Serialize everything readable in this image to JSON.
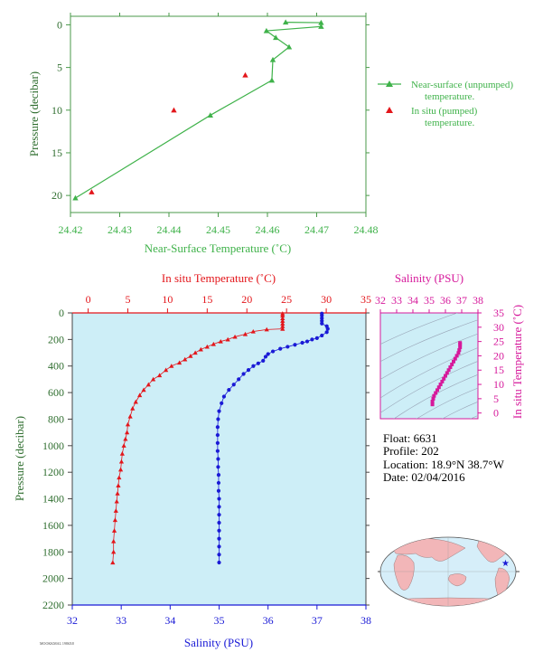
{
  "colors": {
    "green": "#3fb24a",
    "red": "#e3161b",
    "blue": "#1a1ad6",
    "magenta": "#d6199b",
    "panel_bg": "#cdeef7",
    "dark_green_axis": "#2f6e2f"
  },
  "footer_code": "MOOKKMAL 1986X8",
  "info": {
    "float": "Float:  6631",
    "profile": "Profile:  202",
    "location": "Location:  18.9°N  38.7°W",
    "date": "Date:  02/04/2016"
  },
  "chart_data": [
    {
      "type": "line",
      "id": "near_surface",
      "xlabel": "Near-Surface Temperature (˚C)",
      "ylabel": "Pressure (decibar)",
      "xlim": [
        24.42,
        24.48
      ],
      "ylim": [
        22,
        -1
      ],
      "xticks": [
        "24.42",
        "24.43",
        "24.44",
        "24.45",
        "24.46",
        "24.47",
        "24.48"
      ],
      "yticks": [
        "0",
        "5",
        "10",
        "15",
        "20"
      ],
      "legend": [
        {
          "line1": "Near-surface (unpumped)",
          "line2": "temperature."
        },
        {
          "line1": "In situ (pumped)",
          "line2": "temperature."
        }
      ],
      "series": [
        {
          "name": "Near-surface (unpumped) temperature.",
          "points": [
            [
              24.4637,
              -0.3
            ],
            [
              24.4709,
              -0.25
            ],
            [
              24.4709,
              0.2
            ],
            [
              24.4598,
              0.7
            ],
            [
              24.4617,
              1.5
            ],
            [
              24.4644,
              2.6
            ],
            [
              24.4611,
              4.1
            ],
            [
              24.4609,
              6.5
            ],
            [
              24.4484,
              10.6
            ],
            [
              24.421,
              20.3
            ]
          ]
        },
        {
          "name": "In situ (pumped) temperature.",
          "points": [
            [
              24.4555,
              5.9
            ],
            [
              24.441,
              10.0
            ],
            [
              24.4243,
              19.6
            ]
          ]
        }
      ]
    },
    {
      "type": "scatter",
      "id": "profile",
      "ylabel": "Pressure (decibar)",
      "x_top_label": "In situ Temperature (˚C)",
      "x_bottom_label": "Salinity (PSU)",
      "temp_lim": [
        -2,
        35
      ],
      "sal_lim": [
        32,
        38
      ],
      "ylim": [
        2200,
        0
      ],
      "temp_ticks": [
        "0",
        "5",
        "10",
        "15",
        "20",
        "25",
        "30",
        "35"
      ],
      "sal_ticks": [
        "32",
        "33",
        "34",
        "35",
        "36",
        "37",
        "38"
      ],
      "yticks": [
        "0",
        "200",
        "400",
        "600",
        "800",
        "1000",
        "1200",
        "1400",
        "1600",
        "1800",
        "2000",
        "2200"
      ],
      "temperature": [
        [
          24.5,
          5
        ],
        [
          24.5,
          20
        ],
        [
          24.5,
          40
        ],
        [
          24.5,
          60
        ],
        [
          24.5,
          80
        ],
        [
          24.5,
          100
        ],
        [
          24.5,
          120
        ],
        [
          22.5,
          125
        ],
        [
          20.8,
          140
        ],
        [
          19.8,
          160
        ],
        [
          18.5,
          180
        ],
        [
          17.6,
          200
        ],
        [
          16.7,
          215
        ],
        [
          15.8,
          235
        ],
        [
          15.0,
          255
        ],
        [
          14.2,
          275
        ],
        [
          13.5,
          300
        ],
        [
          12.9,
          325
        ],
        [
          12.2,
          350
        ],
        [
          11.5,
          375
        ],
        [
          10.5,
          400
        ],
        [
          9.8,
          430
        ],
        [
          9.0,
          470
        ],
        [
          8.2,
          500
        ],
        [
          7.6,
          540
        ],
        [
          7.0,
          580
        ],
        [
          6.5,
          620
        ],
        [
          6.0,
          670
        ],
        [
          5.6,
          720
        ],
        [
          5.3,
          780
        ],
        [
          5.0,
          840
        ],
        [
          4.9,
          900
        ],
        [
          4.7,
          950
        ],
        [
          4.5,
          1000
        ],
        [
          4.3,
          1060
        ],
        [
          4.2,
          1120
        ],
        [
          4.1,
          1180
        ],
        [
          3.9,
          1240
        ],
        [
          3.8,
          1300
        ],
        [
          3.7,
          1360
        ],
        [
          3.6,
          1420
        ],
        [
          3.5,
          1490
        ],
        [
          3.4,
          1560
        ],
        [
          3.3,
          1640
        ],
        [
          3.2,
          1720
        ],
        [
          3.2,
          1800
        ],
        [
          3.1,
          1880
        ]
      ],
      "salinity": [
        [
          37.1,
          5
        ],
        [
          37.1,
          20
        ],
        [
          37.1,
          40
        ],
        [
          37.1,
          60
        ],
        [
          37.1,
          80
        ],
        [
          37.2,
          100
        ],
        [
          37.22,
          120
        ],
        [
          37.2,
          145
        ],
        [
          37.1,
          170
        ],
        [
          37.0,
          190
        ],
        [
          36.9,
          200
        ],
        [
          36.8,
          215
        ],
        [
          36.7,
          225
        ],
        [
          36.55,
          240
        ],
        [
          36.4,
          255
        ],
        [
          36.25,
          270
        ],
        [
          36.1,
          290
        ],
        [
          36.0,
          310
        ],
        [
          35.95,
          330
        ],
        [
          35.9,
          360
        ],
        [
          35.8,
          380
        ],
        [
          35.7,
          400
        ],
        [
          35.6,
          430
        ],
        [
          35.5,
          460
        ],
        [
          35.4,
          500
        ],
        [
          35.3,
          540
        ],
        [
          35.2,
          580
        ],
        [
          35.1,
          630
        ],
        [
          35.05,
          680
        ],
        [
          35.0,
          740
        ],
        [
          34.98,
          800
        ],
        [
          34.97,
          860
        ],
        [
          34.97,
          920
        ],
        [
          34.97,
          980
        ],
        [
          34.97,
          1040
        ],
        [
          34.98,
          1100
        ],
        [
          34.98,
          1160
        ],
        [
          34.99,
          1220
        ],
        [
          34.99,
          1280
        ],
        [
          34.99,
          1340
        ],
        [
          35.0,
          1400
        ],
        [
          35.0,
          1460
        ],
        [
          35.0,
          1520
        ],
        [
          35.0,
          1580
        ],
        [
          35.0,
          1640
        ],
        [
          35.0,
          1700
        ],
        [
          35.0,
          1760
        ],
        [
          35.0,
          1820
        ],
        [
          35.0,
          1880
        ]
      ]
    },
    {
      "type": "scatter",
      "id": "ts_diagram",
      "xlabel": "Salinity (PSU)",
      "ylabel": "In situ Temperature (˚C)",
      "xlim": [
        32,
        38
      ],
      "ylim": [
        -2,
        35
      ],
      "xticks": [
        "32",
        "33",
        "34",
        "35",
        "36",
        "37",
        "38"
      ],
      "yticks": [
        "0",
        "5",
        "10",
        "15",
        "20",
        "25",
        "30",
        "35"
      ],
      "points": [
        [
          35.2,
          3
        ],
        [
          35.2,
          4
        ],
        [
          35.25,
          5
        ],
        [
          35.3,
          6
        ],
        [
          35.4,
          7
        ],
        [
          35.5,
          8
        ],
        [
          35.6,
          9
        ],
        [
          35.7,
          10
        ],
        [
          35.8,
          11
        ],
        [
          35.9,
          12
        ],
        [
          36.0,
          13
        ],
        [
          36.1,
          14
        ],
        [
          36.2,
          15
        ],
        [
          36.3,
          16
        ],
        [
          36.4,
          17
        ],
        [
          36.5,
          18
        ],
        [
          36.6,
          19
        ],
        [
          36.7,
          20
        ],
        [
          36.8,
          21
        ],
        [
          36.85,
          22
        ],
        [
          36.9,
          23
        ],
        [
          36.9,
          24
        ],
        [
          36.9,
          24.5
        ]
      ]
    }
  ]
}
